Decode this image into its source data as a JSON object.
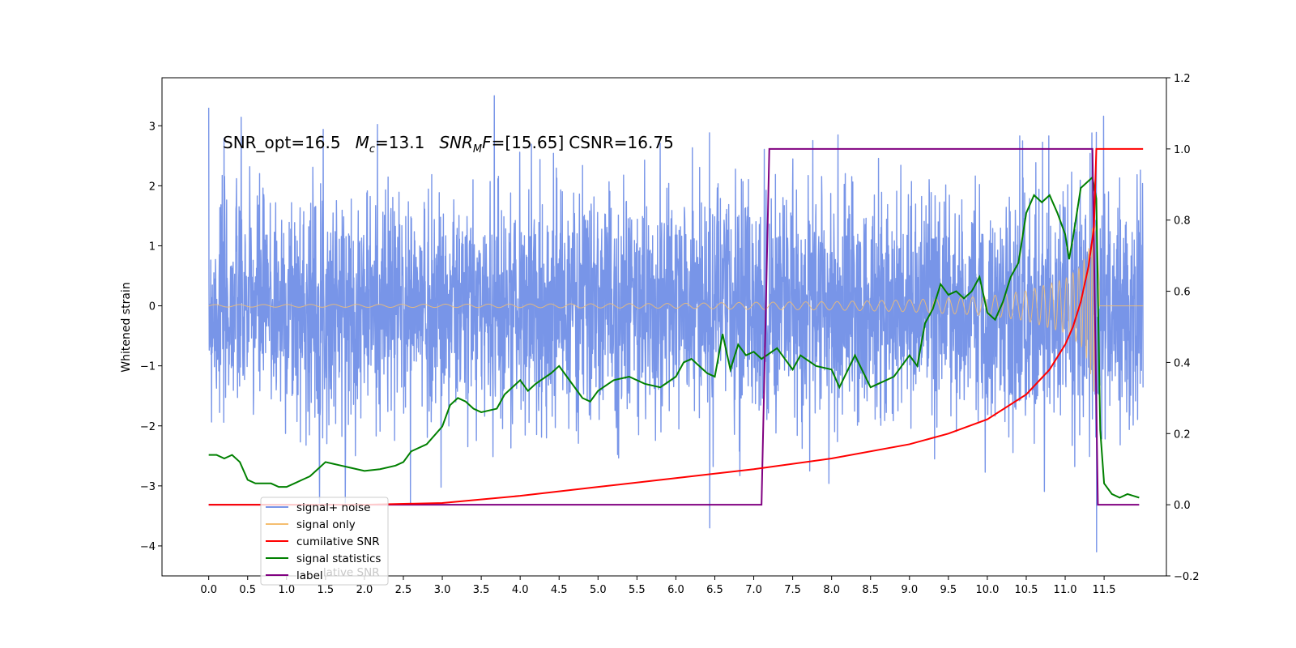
{
  "chart_data": {
    "type": "line",
    "title": "",
    "xlabel": "",
    "ylabel": "Whitened strain",
    "y2label": "",
    "xlim": [
      -0.6,
      12.3
    ],
    "ylim": [
      -4.5,
      3.8
    ],
    "y2lim": [
      -0.2,
      1.2
    ],
    "grid": false,
    "legend_position": "lower-left",
    "x_ticks": [
      0.0,
      0.5,
      1.0,
      1.5,
      2.0,
      2.5,
      3.0,
      3.5,
      4.0,
      4.5,
      5.0,
      5.5,
      6.0,
      6.5,
      7.0,
      7.5,
      8.0,
      8.5,
      9.0,
      9.5,
      10.0,
      10.5,
      11.0,
      11.5
    ],
    "x_tick_labels": [
      "0.0",
      "0.5",
      "1.0",
      "1.5",
      "2.0",
      "2.5",
      "3.0",
      "3.5",
      "4.0",
      "4.5",
      "5.0",
      "5.5",
      "6.0",
      "6.5",
      "7.0",
      "7.5",
      "8.0",
      "8.5",
      "9.0",
      "9.5",
      "10.0",
      "10.5",
      "11.0",
      "11.5"
    ],
    "y_ticks": [
      3,
      2,
      1,
      0,
      -1,
      -2,
      -3,
      -4
    ],
    "y_tick_labels": [
      "3",
      "2",
      "1",
      "0",
      "−1",
      "−2",
      "−3",
      "−4"
    ],
    "y2_ticks": [
      1.2,
      1.0,
      0.8,
      0.6,
      0.4,
      0.2,
      0.0,
      -0.2
    ],
    "y2_tick_labels": [
      "1.2",
      "1.0",
      "0.8",
      "0.6",
      "0.4",
      "0.2",
      "0.0",
      "−0.2"
    ],
    "annotation": {
      "part1": "SNR_opt=16.5",
      "mc_symbol": "M",
      "mc_sub": "c",
      "mc_value": "=13.1",
      "snr_symbol": "SNR",
      "snr_sub": "M",
      "snr_f": "F",
      "snr_value": "=[15.65]",
      "csnr": "CSNR=16.75"
    },
    "series": [
      {
        "name": "signal+ noise",
        "axis": "left",
        "color": "#7895e8",
        "description_values": "noise envelope approx ±2.4, spikes to 3.5 and -4.1",
        "x_range": [
          0.0,
          12.0
        ],
        "peak_max": 3.5,
        "peak_min": -4.1
      },
      {
        "name": "signal only",
        "axis": "left",
        "color": "#f5be70",
        "chirp_start_x": 0.0,
        "merger_x": 11.4,
        "amplitude_at_merger": 1.7,
        "x": [
          0.0,
          4.0,
          6.0,
          7.0,
          8.0,
          9.0,
          10.0,
          10.5,
          11.0,
          11.2,
          11.3,
          11.4,
          11.45,
          12.0
        ],
        "envelope": [
          0.02,
          0.03,
          0.04,
          0.06,
          0.07,
          0.1,
          0.16,
          0.25,
          0.45,
          0.65,
          0.95,
          1.7,
          0.0,
          0.0
        ]
      },
      {
        "name": "cumilative SNR",
        "axis": "right",
        "color": "#ff0000",
        "x": [
          0.0,
          2.0,
          3.0,
          4.0,
          5.0,
          6.0,
          7.0,
          8.0,
          9.0,
          9.5,
          10.0,
          10.5,
          10.8,
          11.0,
          11.1,
          11.2,
          11.3,
          11.37,
          11.4,
          12.0
        ],
        "values": [
          0.0,
          0.0,
          0.005,
          0.025,
          0.05,
          0.075,
          0.1,
          0.13,
          0.17,
          0.2,
          0.24,
          0.31,
          0.38,
          0.45,
          0.5,
          0.57,
          0.67,
          0.78,
          1.0,
          1.0
        ]
      },
      {
        "name": "signal statistics",
        "axis": "right",
        "color": "#008000",
        "x": [
          0.0,
          0.1,
          0.2,
          0.3,
          0.4,
          0.5,
          0.6,
          0.8,
          0.9,
          1.0,
          1.1,
          1.2,
          1.3,
          1.4,
          1.5,
          1.6,
          1.7,
          1.8,
          2.0,
          2.2,
          2.4,
          2.5,
          2.6,
          2.8,
          3.0,
          3.1,
          3.2,
          3.3,
          3.4,
          3.5,
          3.7,
          3.8,
          3.9,
          4.0,
          4.1,
          4.2,
          4.4,
          4.5,
          4.6,
          4.8,
          4.9,
          5.0,
          5.2,
          5.4,
          5.6,
          5.8,
          6.0,
          6.1,
          6.2,
          6.4,
          6.5,
          6.6,
          6.7,
          6.8,
          6.9,
          7.0,
          7.1,
          7.3,
          7.5,
          7.6,
          7.8,
          8.0,
          8.1,
          8.3,
          8.5,
          8.6,
          8.8,
          9.0,
          9.1,
          9.2,
          9.3,
          9.4,
          9.5,
          9.6,
          9.7,
          9.8,
          9.9,
          10.0,
          10.1,
          10.2,
          10.3,
          10.4,
          10.5,
          10.6,
          10.7,
          10.8,
          10.9,
          11.0,
          11.05,
          11.1,
          11.2,
          11.3,
          11.35,
          11.4,
          11.45,
          11.5,
          11.6,
          11.7,
          11.8,
          11.95
        ],
        "values": [
          0.14,
          0.14,
          0.13,
          0.14,
          0.12,
          0.07,
          0.06,
          0.06,
          0.05,
          0.05,
          0.06,
          0.07,
          0.08,
          0.1,
          0.12,
          0.115,
          0.11,
          0.105,
          0.095,
          0.1,
          0.11,
          0.12,
          0.15,
          0.17,
          0.22,
          0.28,
          0.3,
          0.29,
          0.27,
          0.26,
          0.27,
          0.31,
          0.33,
          0.35,
          0.32,
          0.34,
          0.37,
          0.39,
          0.36,
          0.3,
          0.29,
          0.32,
          0.35,
          0.36,
          0.34,
          0.33,
          0.36,
          0.4,
          0.41,
          0.37,
          0.36,
          0.48,
          0.38,
          0.45,
          0.42,
          0.43,
          0.41,
          0.44,
          0.38,
          0.42,
          0.39,
          0.38,
          0.33,
          0.42,
          0.33,
          0.34,
          0.36,
          0.42,
          0.39,
          0.51,
          0.55,
          0.62,
          0.59,
          0.6,
          0.58,
          0.6,
          0.64,
          0.54,
          0.52,
          0.57,
          0.64,
          0.68,
          0.82,
          0.87,
          0.85,
          0.87,
          0.82,
          0.76,
          0.69,
          0.75,
          0.89,
          0.91,
          0.92,
          0.86,
          0.21,
          0.06,
          0.03,
          0.02,
          0.03,
          0.02
        ]
      },
      {
        "name": "label",
        "axis": "right",
        "color": "#800080",
        "x": [
          0.0,
          7.1,
          7.2,
          11.35,
          11.42,
          11.95
        ],
        "values": [
          0.0,
          0.0,
          1.0,
          1.0,
          0.0,
          0.0
        ]
      }
    ],
    "legend_entries": [
      "signal+ noise",
      "signal only",
      "cumilative SNR",
      "signal statistics",
      "label"
    ],
    "legend_ghost_text": "cumilative SNR"
  }
}
